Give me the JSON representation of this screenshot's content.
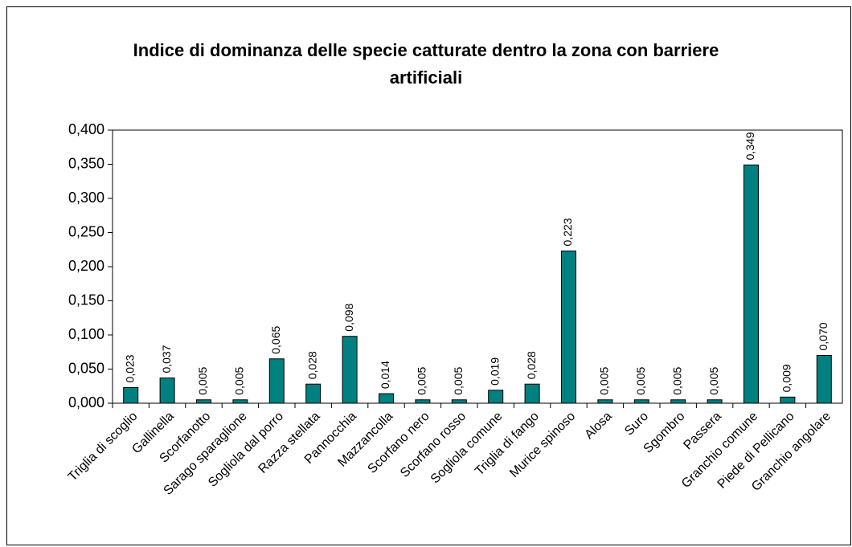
{
  "chart_data": {
    "type": "bar",
    "title": "Indice di dominanza delle specie catturate dentro la zona con barriere artificiali",
    "categories": [
      "Triglia di scoglio",
      "Gallinella",
      "Scorfanotto",
      "Sarago sparaglione",
      "Sogliola dal porro",
      "Razza stellata",
      "Pannocchia",
      "Mazzancolla",
      "Scorfano nero",
      "Scorfano rosso",
      "Sogliola comune",
      "Triglia di fango",
      "Murice spinoso",
      "Alosa",
      "Suro",
      "Sgombro",
      "Passera",
      "Granchio comune",
      "Piede di Pellicano",
      "Granchio angolare"
    ],
    "values": [
      0.023,
      0.037,
      0.005,
      0.005,
      0.065,
      0.028,
      0.098,
      0.014,
      0.005,
      0.005,
      0.019,
      0.028,
      0.223,
      0.005,
      0.005,
      0.005,
      0.005,
      0.349,
      0.009,
      0.07
    ],
    "value_labels": [
      "0,023",
      "0,037",
      "0,005",
      "0,005",
      "0,065",
      "0,028",
      "0,098",
      "0,014",
      "0,005",
      "0,005",
      "0,019",
      "0,028",
      "0,223",
      "0,005",
      "0,005",
      "0,005",
      "0,005",
      "0,349",
      "0,009",
      "0,070"
    ],
    "color": "#008080",
    "ylim": [
      0,
      0.4
    ],
    "yticks": [
      {
        "value": 0,
        "label": "0,000"
      },
      {
        "value": 0.05,
        "label": "0,050"
      },
      {
        "value": 0.1,
        "label": "0,100"
      },
      {
        "value": 0.15,
        "label": "0,150"
      },
      {
        "value": 0.2,
        "label": "0,200"
      },
      {
        "value": 0.25,
        "label": "0,250"
      },
      {
        "value": 0.3,
        "label": "0,300"
      },
      {
        "value": 0.35,
        "label": "0,350"
      },
      {
        "value": 0.4,
        "label": "0,400"
      }
    ],
    "grid": false
  }
}
